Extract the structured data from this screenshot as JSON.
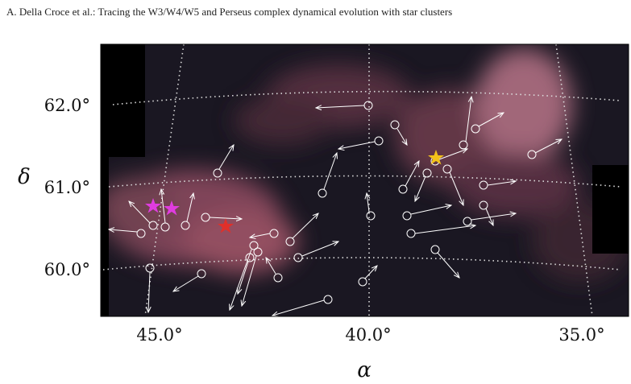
{
  "header": {
    "running_title": "A. Della Croce  et al.: Tracing the W3/W4/W5 and Perseus complex dynamical evolution with star clusters"
  },
  "figure": {
    "y_axis": {
      "label": "δ",
      "ticks": [
        "62.0°",
        "61.0°",
        "60.0°"
      ]
    },
    "x_axis": {
      "label": "α",
      "ticks": [
        "45.0°",
        "40.0°",
        "35.0°"
      ]
    }
  }
}
